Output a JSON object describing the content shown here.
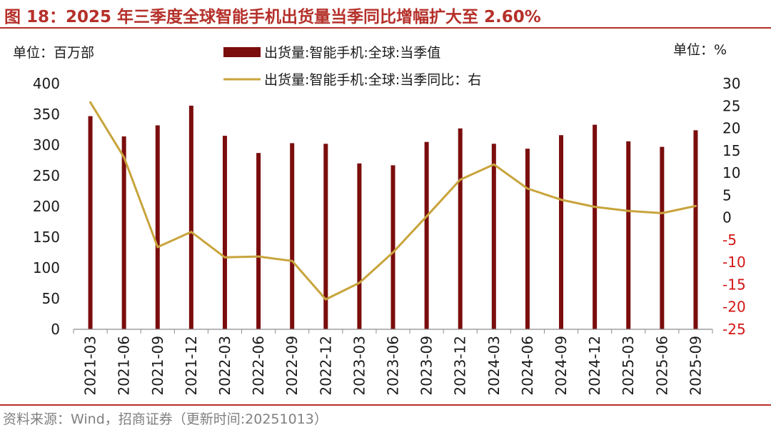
{
  "title": "图 18：2025 年三季度全球智能手机出货量当季同比增幅扩大至 2.60%",
  "source": "资料来源：Wind，招商证券（更新时间:20251013）",
  "colors": {
    "title": "#b5302a",
    "bar": "#7b0d0d",
    "line": "#c8a43c",
    "right_axis_negative": "#d41616",
    "text": "#1a1a1a",
    "source": "#808080"
  },
  "chart_data": {
    "type": "bar+line",
    "categories": [
      "2021-03",
      "2021-06",
      "2021-09",
      "2021-12",
      "2022-03",
      "2022-06",
      "2022-09",
      "2022-12",
      "2023-03",
      "2023-06",
      "2023-09",
      "2023-12",
      "2024-03",
      "2024-06",
      "2024-09",
      "2024-12",
      "2025-03",
      "2025-06",
      "2025-09"
    ],
    "series": [
      {
        "name": "出货量:智能手机:全球:当季值",
        "type": "bar",
        "axis": "left",
        "values": [
          347,
          314,
          332,
          364,
          315,
          287,
          303,
          302,
          270,
          267,
          305,
          327,
          302,
          294,
          316,
          333,
          306,
          297,
          324
        ]
      },
      {
        "name": "出货量:智能手机:全球:当季同比：右",
        "type": "line",
        "axis": "right",
        "values": [
          25.8,
          13.5,
          -6.6,
          -3.2,
          -8.9,
          -8.7,
          -9.7,
          -18.3,
          -14.6,
          -7.8,
          0.3,
          8.5,
          11.9,
          6.5,
          4.0,
          2.4,
          1.5,
          1.0,
          2.6
        ]
      }
    ],
    "left_axis": {
      "unit_label": "单位：百万部",
      "range": [
        0,
        400
      ],
      "ticks": [
        "0",
        "50",
        "100",
        "150",
        "200",
        "250",
        "300",
        "350",
        "400"
      ]
    },
    "right_axis": {
      "unit_label": "单位：%",
      "range": [
        -25,
        30
      ],
      "ticks": [
        "30",
        "25",
        "20",
        "15",
        "10",
        "5",
        "0",
        "-5",
        "-10",
        "-15",
        "-20",
        "-25"
      ]
    },
    "legend_position": "top-center"
  }
}
